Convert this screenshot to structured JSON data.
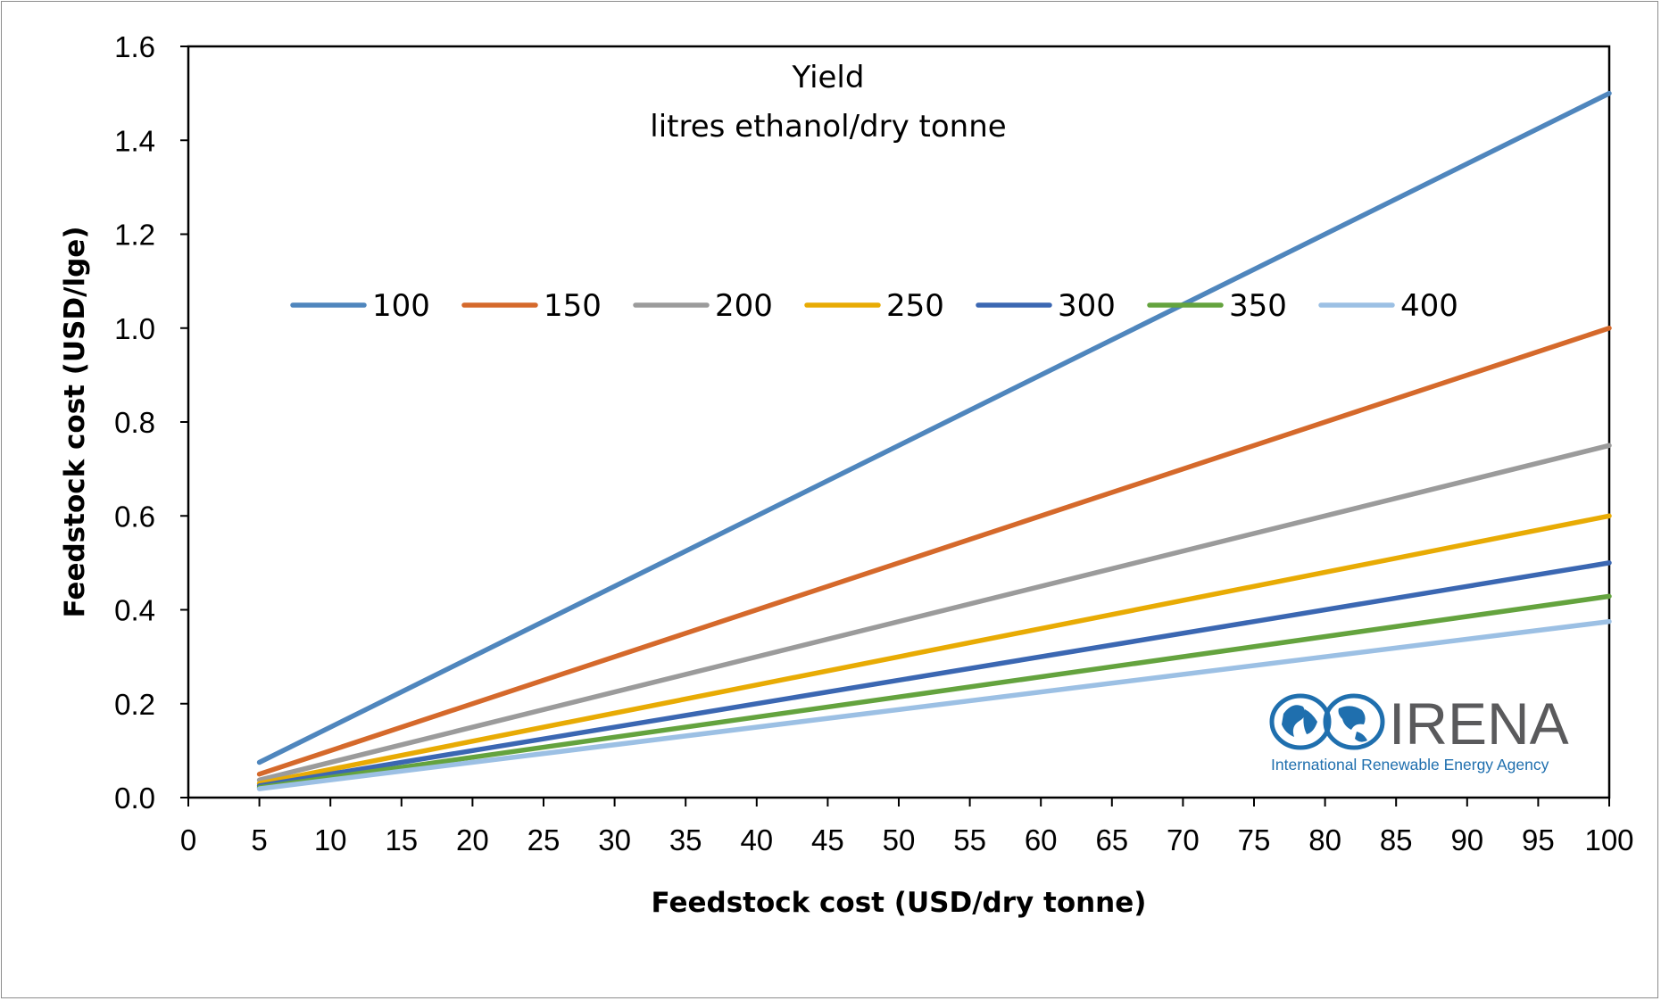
{
  "chart_data": {
    "type": "line",
    "title": "",
    "annotation": [
      "Yield",
      "litres ethanol/dry tonne"
    ],
    "xlabel": "Feedstock cost (USD/dry tonne)",
    "ylabel": "Feedstock cost (USD/lge)",
    "xlim": [
      0,
      100
    ],
    "ylim": [
      0,
      1.6
    ],
    "xticks": [
      "0",
      "5",
      "10",
      "15",
      "20",
      "25",
      "30",
      "35",
      "40",
      "45",
      "50",
      "55",
      "60",
      "65",
      "70",
      "75",
      "80",
      "85",
      "90",
      "95",
      "100"
    ],
    "yticks": [
      "0.0",
      "0.2",
      "0.4",
      "0.6",
      "0.8",
      "1.0",
      "1.2",
      "1.4",
      "1.6"
    ],
    "grid": false,
    "legend_position": "inside-middle",
    "x": [
      5,
      100
    ],
    "series": [
      {
        "name": "100",
        "color": "#4f86bd",
        "values": [
          0.075,
          1.5
        ]
      },
      {
        "name": "150",
        "color": "#d5692b",
        "values": [
          0.05,
          1.0
        ]
      },
      {
        "name": "200",
        "color": "#9b9b9b",
        "values": [
          0.0375,
          0.75
        ]
      },
      {
        "name": "250",
        "color": "#e8ab04",
        "values": [
          0.03,
          0.6
        ]
      },
      {
        "name": "300",
        "color": "#3b67b2",
        "values": [
          0.025,
          0.5
        ]
      },
      {
        "name": "350",
        "color": "#64a33e",
        "values": [
          0.0214,
          0.4286
        ]
      },
      {
        "name": "400",
        "color": "#9cc0e4",
        "values": [
          0.01875,
          0.375
        ]
      }
    ]
  },
  "logo": {
    "name": "IRENA",
    "subtitle": "International Renewable Energy Agency"
  }
}
